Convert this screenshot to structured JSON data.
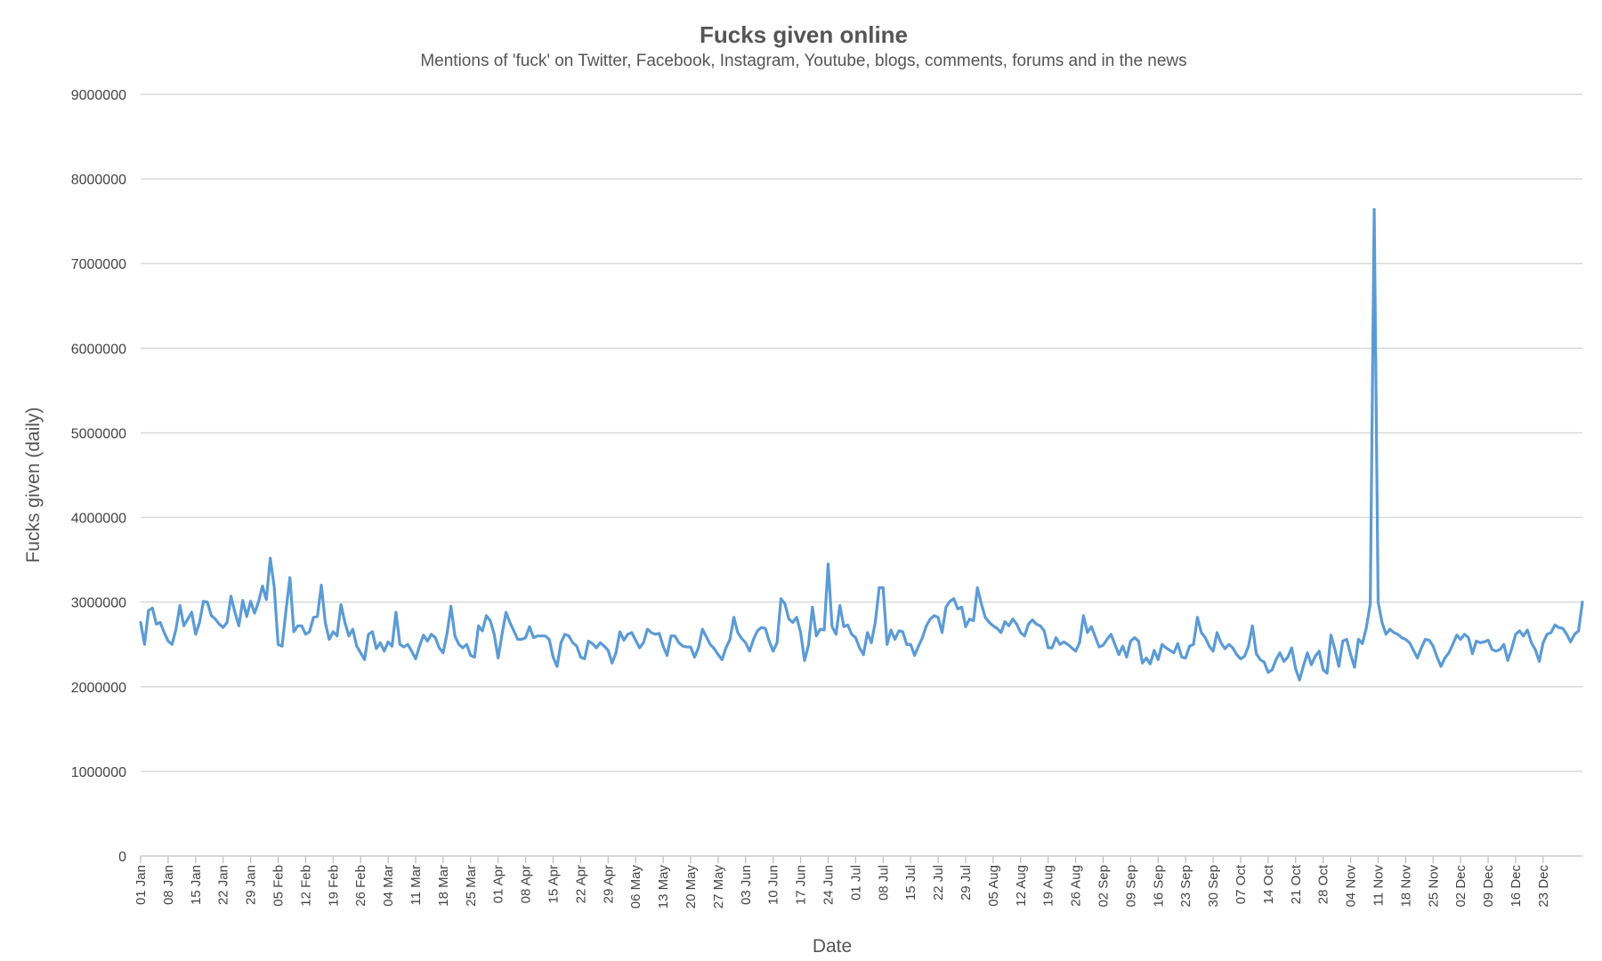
{
  "chart_data": {
    "type": "line",
    "title": "Fucks given online",
    "subtitle": "Mentions of 'fuck' on Twitter, Facebook, Instagram, Youtube, blogs, comments, forums and in the news",
    "xlabel": "Date",
    "ylabel": "Fucks given (daily)",
    "ylim": [
      0,
      9000000
    ],
    "yticks": [
      "9000000",
      "8000000",
      "7000000",
      "6000000",
      "5000000",
      "4000000",
      "3000000",
      "2000000",
      "1000000",
      "0"
    ],
    "grid": true,
    "legend": "none",
    "color": "#5b9bd5",
    "xtick_labels": [
      "01 Jan",
      "08 Jan",
      "15 Jan",
      "22 Jan",
      "29 Jan",
      "05 Feb",
      "12 Feb",
      "19 Feb",
      "26 Feb",
      "04 Mar",
      "11 Mar",
      "18 Mar",
      "25 Mar",
      "01 Apr",
      "08 Apr",
      "15 Apr",
      "22 Apr",
      "29 Apr",
      "06 May",
      "13 May",
      "20 May",
      "27 May",
      "03 Jun",
      "10 Jun",
      "17 Jun",
      "24 Jun",
      "01 Jul",
      "08 Jul",
      "15 Jul",
      "22 Jul",
      "29 Jul",
      "05 Aug",
      "12 Aug",
      "19 Aug",
      "26 Aug",
      "02 Sep",
      "09 Sep",
      "16 Sep",
      "23 Sep",
      "30 Sep",
      "07 Oct",
      "14 Oct",
      "21 Oct",
      "28 Oct",
      "04 Nov",
      "11 Nov",
      "18 Nov",
      "25 Nov",
      "02 Dec",
      "09 Dec",
      "16 Dec",
      "23 Dec"
    ],
    "series": [
      {
        "values": [
          2760000,
          2500000,
          2900000,
          2930000,
          2740000,
          2760000,
          2640000,
          2540000,
          2500000,
          2680000,
          2960000,
          2720000,
          2800000,
          2880000,
          2620000,
          2760000,
          3010000,
          3000000,
          2840000,
          2800000,
          2740000,
          2700000,
          2760000,
          3070000,
          2880000,
          2720000,
          3020000,
          2830000,
          3010000,
          2870000,
          3000000,
          3190000,
          3030000,
          3520000,
          3180000,
          2500000,
          2480000,
          2900000,
          3290000,
          2650000,
          2720000,
          2720000,
          2620000,
          2650000,
          2820000,
          2830000,
          3200000,
          2760000,
          2560000,
          2650000,
          2600000,
          2970000,
          2760000,
          2600000,
          2680000,
          2480000,
          2400000,
          2320000,
          2620000,
          2650000,
          2450000,
          2520000,
          2420000,
          2530000,
          2480000,
          2880000,
          2500000,
          2470000,
          2500000,
          2420000,
          2330000,
          2480000,
          2610000,
          2540000,
          2620000,
          2580000,
          2460000,
          2400000,
          2630000,
          2950000,
          2600000,
          2500000,
          2460000,
          2500000,
          2370000,
          2350000,
          2720000,
          2660000,
          2840000,
          2780000,
          2620000,
          2340000,
          2620000,
          2880000,
          2760000,
          2660000,
          2560000,
          2560000,
          2580000,
          2710000,
          2580000,
          2600000,
          2600000,
          2600000,
          2560000,
          2350000,
          2240000,
          2520000,
          2620000,
          2600000,
          2520000,
          2480000,
          2350000,
          2330000,
          2540000,
          2510000,
          2460000,
          2520000,
          2480000,
          2430000,
          2280000,
          2400000,
          2650000,
          2550000,
          2620000,
          2640000,
          2550000,
          2460000,
          2520000,
          2680000,
          2640000,
          2620000,
          2630000,
          2480000,
          2370000,
          2600000,
          2600000,
          2520000,
          2480000,
          2470000,
          2470000,
          2350000,
          2460000,
          2680000,
          2590000,
          2500000,
          2450000,
          2380000,
          2320000,
          2460000,
          2560000,
          2820000,
          2640000,
          2570000,
          2520000,
          2420000,
          2560000,
          2660000,
          2700000,
          2690000,
          2540000,
          2420000,
          2520000,
          3040000,
          2980000,
          2800000,
          2760000,
          2820000,
          2640000,
          2310000,
          2490000,
          2940000,
          2600000,
          2680000,
          2670000,
          3450000,
          2710000,
          2620000,
          2960000,
          2710000,
          2730000,
          2620000,
          2580000,
          2460000,
          2380000,
          2640000,
          2520000,
          2760000,
          3170000,
          3170000,
          2500000,
          2670000,
          2560000,
          2660000,
          2650000,
          2500000,
          2500000,
          2370000,
          2480000,
          2580000,
          2720000,
          2800000,
          2840000,
          2820000,
          2640000,
          2940000,
          3010000,
          3040000,
          2920000,
          2940000,
          2710000,
          2800000,
          2780000,
          3170000,
          2980000,
          2820000,
          2760000,
          2720000,
          2690000,
          2640000,
          2770000,
          2720000,
          2800000,
          2740000,
          2640000,
          2600000,
          2740000,
          2790000,
          2740000,
          2720000,
          2660000,
          2460000,
          2460000,
          2580000,
          2500000,
          2530000,
          2500000,
          2460000,
          2420000,
          2520000,
          2840000,
          2640000,
          2710000,
          2590000,
          2470000,
          2490000,
          2560000,
          2620000,
          2500000,
          2380000,
          2480000,
          2350000,
          2540000,
          2580000,
          2540000,
          2280000,
          2340000,
          2270000,
          2430000,
          2320000,
          2500000,
          2460000,
          2430000,
          2400000,
          2510000,
          2350000,
          2340000,
          2480000,
          2500000,
          2820000,
          2640000,
          2580000,
          2480000,
          2420000,
          2640000,
          2520000,
          2450000,
          2500000,
          2460000,
          2380000,
          2330000,
          2360000,
          2480000,
          2720000,
          2390000,
          2320000,
          2290000,
          2170000,
          2200000,
          2320000,
          2400000,
          2300000,
          2350000,
          2460000,
          2210000,
          2080000,
          2250000,
          2400000,
          2260000,
          2360000,
          2420000,
          2200000,
          2160000,
          2610000,
          2440000,
          2240000,
          2540000,
          2560000,
          2380000,
          2230000,
          2560000,
          2510000,
          2700000,
          2980000,
          7640000,
          3000000,
          2760000,
          2620000,
          2680000,
          2640000,
          2620000,
          2580000,
          2560000,
          2520000,
          2430000,
          2340000,
          2460000,
          2560000,
          2550000,
          2480000,
          2350000,
          2240000,
          2340000,
          2400000,
          2500000,
          2610000,
          2560000,
          2620000,
          2580000,
          2390000,
          2540000,
          2520000,
          2530000,
          2550000,
          2440000,
          2420000,
          2440000,
          2500000,
          2310000,
          2450000,
          2620000,
          2660000,
          2600000,
          2670000,
          2520000,
          2440000,
          2300000,
          2520000,
          2620000,
          2640000,
          2730000,
          2700000,
          2690000,
          2620000,
          2530000,
          2620000,
          2660000,
          3000000
        ]
      }
    ]
  }
}
